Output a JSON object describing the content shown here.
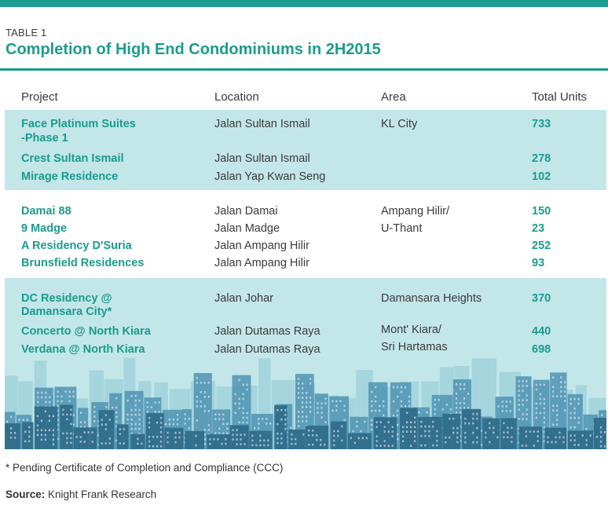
{
  "table": {
    "label": "TABLE 1",
    "title": "Completion of High End Condominiums in 2H2015",
    "headers": [
      "Project",
      "Location",
      "Area",
      "Total Units"
    ],
    "groups": [
      {
        "area": [
          "KL City"
        ],
        "rows": [
          {
            "project": [
              "Face Platinum Suites",
              "-Phase 1"
            ],
            "location": "Jalan Sultan Ismail",
            "units": "733"
          },
          {
            "project": [
              "Crest Sultan Ismail"
            ],
            "location": "Jalan Sultan Ismail",
            "units": "278"
          },
          {
            "project": [
              "Mirage Residence"
            ],
            "location": "Jalan Yap Kwan Seng",
            "units": "102"
          }
        ]
      },
      {
        "area": [
          "Ampang Hilir/",
          "U-Thant"
        ],
        "rows": [
          {
            "project": [
              "Damai 88"
            ],
            "location": "Jalan Damai",
            "units": "150"
          },
          {
            "project": [
              "9 Madge"
            ],
            "location": "Jalan Madge",
            "units": "23"
          },
          {
            "project": [
              "A Residency D'Suria"
            ],
            "location": "Jalan Ampang Hilir",
            "units": "252"
          },
          {
            "project": [
              "Brunsfield Residences"
            ],
            "location": "Jalan Ampang Hilir",
            "units": "93"
          }
        ]
      },
      {
        "area_groups": [
          [
            "Damansara Heights"
          ],
          [
            "Mont' Kiara/",
            "Sri Hartamas"
          ]
        ],
        "rows": [
          {
            "project": [
              "DC Residency @",
              "Damansara City*"
            ],
            "location": "Jalan Johar",
            "units": "370"
          },
          {
            "project": [
              "Concerto @ North Kiara"
            ],
            "location": "Jalan Dutamas Raya",
            "units": "440"
          },
          {
            "project": [
              "Verdana @ North Kiara"
            ],
            "location": "Jalan Dutamas Raya",
            "units": "698"
          }
        ]
      }
    ]
  },
  "footnote": "* Pending Certificate of Completion and Compliance (CCC)",
  "source": {
    "label": "Source:",
    "text": " Knight Frank Research"
  },
  "colors": {
    "accent": "#1a9c8e",
    "band": "#c3e6e9",
    "skyline_dark": "#2f6d8a",
    "skyline_mid": "#4f93b3",
    "skyline_light": "#8cc6d4"
  }
}
